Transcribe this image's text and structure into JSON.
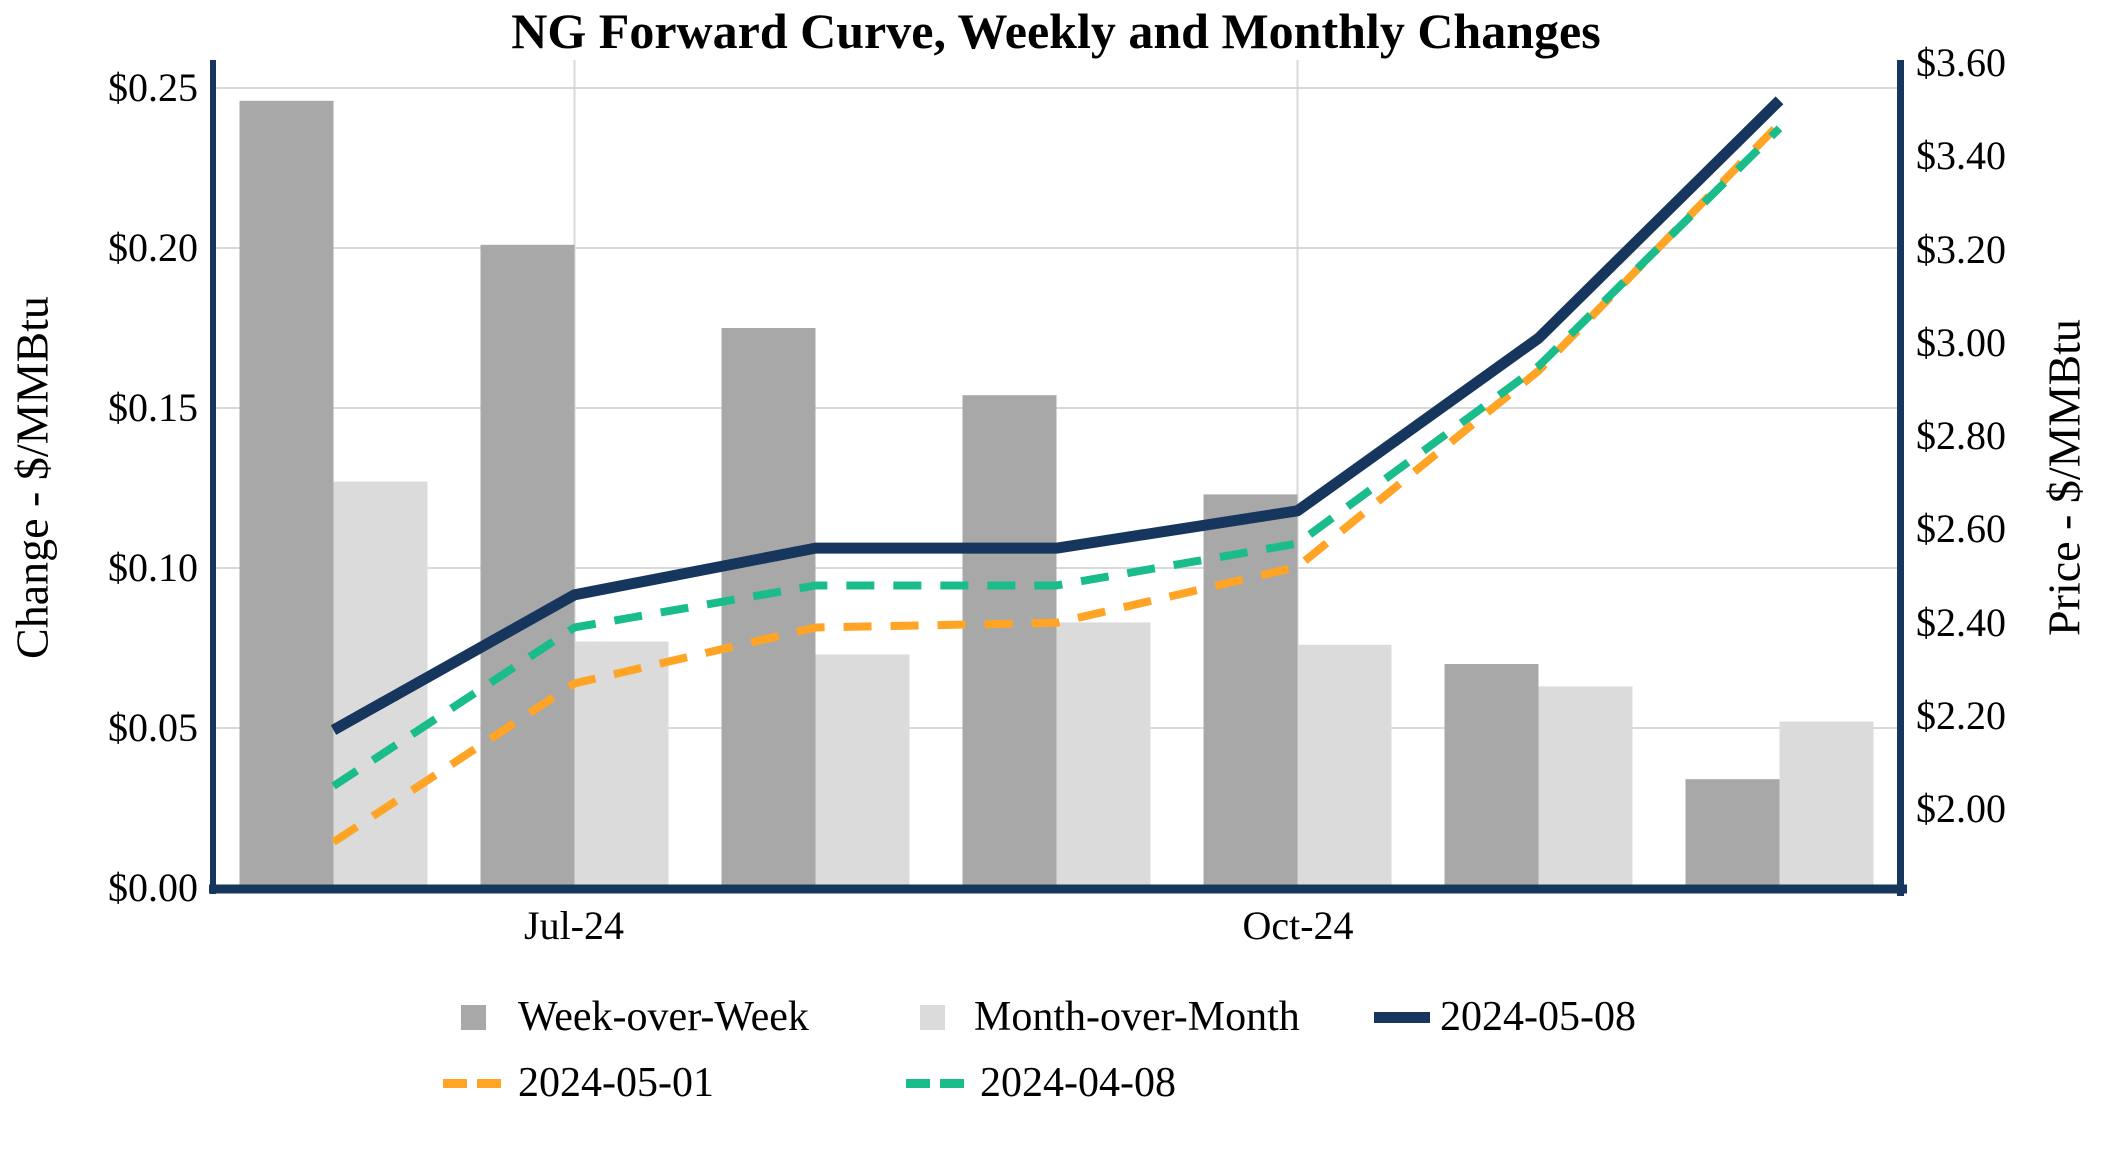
{
  "title": "NG Forward Curve, Weekly and Monthly Changes",
  "left_axis": {
    "title": "Change - $/MMBtu",
    "ticks": [
      "$0.00",
      "$0.05",
      "$0.10",
      "$0.15",
      "$0.20",
      "$0.25"
    ]
  },
  "right_axis": {
    "title": "Price - $/MMBtu",
    "ticks": [
      "$2.00",
      "$2.20",
      "$2.40",
      "$2.60",
      "$2.80",
      "$3.00",
      "$3.20",
      "$3.40",
      "$3.60"
    ]
  },
  "x_axis": {
    "tick_labels": [
      "Jul-24",
      "Oct-24"
    ]
  },
  "legend": [
    {
      "label": "Week-over-Week",
      "marker": "square",
      "color": "#a8a8a8"
    },
    {
      "label": "Month-over-Month",
      "marker": "square",
      "color": "#dbdbdb"
    },
    {
      "label": "2024-05-08",
      "marker": "solid-line",
      "color": "#17365d"
    },
    {
      "label": "2024-05-01",
      "marker": "dashed-line",
      "color": "#ffa424"
    },
    {
      "label": "2024-04-08",
      "marker": "dashed-line",
      "color": "#1abc8c"
    }
  ],
  "chart_data": {
    "type": "bar",
    "subtype": "bar-line-combo",
    "title": "NG Forward Curve, Weekly and Monthly Changes",
    "n_categories": 7,
    "x_tick_labels": [
      "Jul-24",
      "Oct-24"
    ],
    "x_tick_category_indices": [
      1,
      4
    ],
    "bar_series": [
      {
        "name": "Week-over-Week",
        "axis": "left",
        "color": "#a8a8a8",
        "values": [
          0.246,
          0.201,
          0.175,
          0.154,
          0.123,
          0.07,
          0.034
        ]
      },
      {
        "name": "Month-over-Month",
        "axis": "left",
        "color": "#dbdbdb",
        "values": [
          0.127,
          0.077,
          0.073,
          0.083,
          0.076,
          0.063,
          0.052
        ]
      }
    ],
    "line_series": [
      {
        "name": "2024-05-08",
        "axis": "right",
        "style": "solid",
        "color": "#17365d",
        "values": [
          2.17,
          2.46,
          2.56,
          2.56,
          2.64,
          3.01,
          3.52
        ]
      },
      {
        "name": "2024-05-01",
        "axis": "right",
        "style": "dashed",
        "color": "#ffa424",
        "values": [
          1.93,
          2.27,
          2.39,
          2.4,
          2.52,
          2.94,
          3.47
        ]
      },
      {
        "name": "2024-04-08",
        "axis": "right",
        "style": "dashed",
        "color": "#1abc8c",
        "values": [
          2.05,
          2.39,
          2.48,
          2.48,
          2.57,
          2.95,
          3.46
        ]
      }
    ],
    "left_axis": {
      "label": "Change - $/MMBtu",
      "unit": "$/MMBtu",
      "ylim": [
        0.0,
        0.2585
      ],
      "tick_interval": 0.05
    },
    "right_axis": {
      "label": "Price - $/MMBtu",
      "unit": "$/MMBtu",
      "ylim": [
        1.83,
        3.6
      ],
      "tick_interval": 0.2
    },
    "grid": {
      "horizontal": true,
      "vertical_at_labeled_ticks": true
    },
    "legend_position": "bottom"
  },
  "colors": {
    "bar_dark": "#a8a8a8",
    "bar_light": "#dbdbdb",
    "line_navy": "#17365d",
    "line_orange": "#ffa424",
    "line_green": "#1abc8c",
    "gridline": "#d9d9d9",
    "axis": "#17365d",
    "background": "#ffffff"
  }
}
